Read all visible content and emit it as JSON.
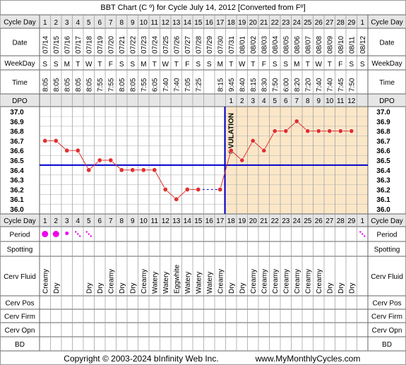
{
  "title": "BBT Chart (C º) for Cycle July 14, 2012  [Converted from Fº]",
  "copyright": "Copyright © 2003-2024 bInfinity Web Inc.",
  "site_url": "www.MyMonthlyCycles.com",
  "row_labels": {
    "cycle_day": "Cycle Day",
    "date": "Date",
    "weekday": "WeekDay",
    "time": "Time",
    "dpo": "DPO",
    "period": "Period",
    "spotting": "Spotting",
    "cerv_fluid": "Cerv Fluid",
    "cerv_pos": "Cerv Pos",
    "cerv_firm": "Cerv Firm",
    "cerv_opn": "Cerv Opn",
    "bd": "BD"
  },
  "ovulation_label": "OVULATION",
  "colors": {
    "line": "#e03030",
    "coverline": "#0000cc",
    "ovulation_line": "#0000cc",
    "luteal_fill": "#fbe7c8",
    "period_dot": "#ee00ee",
    "header_bg": "#e6e6e6",
    "frame": "#9a9a9a"
  },
  "chart_data": {
    "type": "line",
    "cycle_days": [
      "1",
      "2",
      "3",
      "4",
      "5",
      "6",
      "7",
      "8",
      "9",
      "10",
      "11",
      "12",
      "13",
      "14",
      "15",
      "16",
      "17",
      "18",
      "19",
      "20",
      "21",
      "22",
      "23",
      "24",
      "25",
      "26",
      "27",
      "28",
      "29",
      "1"
    ],
    "dates": [
      "07/14",
      "07/15",
      "07/16",
      "07/17",
      "07/18",
      "07/19",
      "07/20",
      "07/21",
      "07/22",
      "07/23",
      "07/24",
      "07/25",
      "07/26",
      "07/27",
      "07/28",
      "07/29",
      "07/30",
      "07/31",
      "08/01",
      "08/02",
      "08/03",
      "08/04",
      "08/05",
      "08/06",
      "08/07",
      "08/08",
      "08/09",
      "08/10",
      "08/11",
      "08/12"
    ],
    "weekdays": [
      "S",
      "S",
      "M",
      "T",
      "W",
      "T",
      "F",
      "S",
      "S",
      "M",
      "T",
      "W",
      "T",
      "F",
      "S",
      "S",
      "M",
      "T",
      "W",
      "T",
      "F",
      "S",
      "S",
      "M",
      "T",
      "W",
      "T",
      "F",
      "S",
      "S"
    ],
    "times": [
      "8:05",
      "8:05",
      "8:05",
      "8:05",
      "8:05",
      "7:55",
      "7:55",
      "8:05",
      "8:05",
      "7:55",
      "6:05",
      "7:40",
      "7:40",
      "7:05",
      "7:25",
      "",
      "8:15",
      "9:45",
      "8:40",
      "8:15",
      "8:30",
      "7:50",
      "6:00",
      "8:20",
      "7:20",
      "7:40",
      "7:40",
      "7:45",
      "7:50",
      ""
    ],
    "dpo": [
      "",
      "",
      "",
      "",
      "",
      "",
      "",
      "",
      "",
      "",
      "",
      "",
      "",
      "",
      "",
      "",
      "",
      "1",
      "2",
      "3",
      "4",
      "5",
      "6",
      "7",
      "8",
      "9",
      "10",
      "11",
      "12",
      ""
    ],
    "temperatures": [
      36.7,
      36.7,
      36.6,
      36.6,
      36.4,
      36.5,
      36.5,
      36.4,
      36.4,
      36.4,
      36.4,
      36.2,
      36.1,
      36.2,
      36.2,
      null,
      36.2,
      36.6,
      36.5,
      36.7,
      36.6,
      36.8,
      36.8,
      36.9,
      36.8,
      36.8,
      36.8,
      36.8,
      36.8,
      null
    ],
    "interpolated_segment": {
      "from_day_index": 14,
      "to_day_index": 16,
      "value": 36.2
    },
    "y_ticks": [
      "37.0",
      "36.9",
      "36.8",
      "36.7",
      "36.6",
      "36.5",
      "36.4",
      "36.3",
      "36.2",
      "36.1",
      "36.0"
    ],
    "ylim": [
      36.0,
      37.0
    ],
    "coverline": 36.45,
    "ovulation_day_index": 16,
    "period": [
      "heavy",
      "heavy",
      "medium",
      "light",
      "light",
      "",
      "",
      "",
      "",
      "",
      "",
      "",
      "",
      "",
      "",
      "",
      "",
      "",
      "",
      "",
      "",
      "",
      "",
      "",
      "",
      "",
      "",
      "",
      "",
      "light"
    ],
    "cerv_fluid": [
      "Creamy",
      "Dry",
      "",
      "",
      "Dry",
      "Dry",
      "Creamy",
      "Dry",
      "Dry",
      "Creamy",
      "Watery",
      "Watery",
      "Eggwhite",
      "Watery",
      "Watery",
      "Watery",
      "Creamy",
      "Dry",
      "Dry",
      "Creamy",
      "Creamy",
      "Creamy",
      "Creamy",
      "Creamy",
      "Creamy",
      "Creamy",
      "Dry",
      "Dry",
      "Dry",
      ""
    ]
  }
}
